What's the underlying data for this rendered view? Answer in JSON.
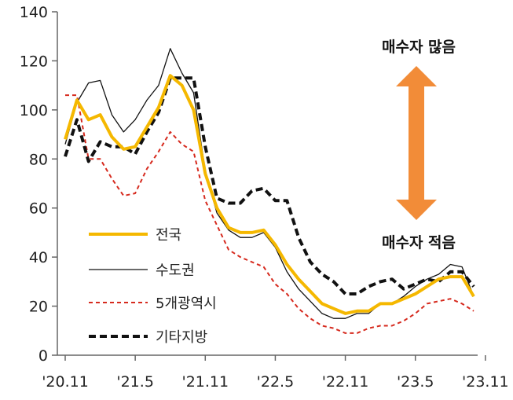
{
  "chart_data": {
    "type": "line",
    "title": "",
    "xlabel": "",
    "ylabel": "",
    "ylim": [
      0,
      140
    ],
    "yticks": [
      0,
      20,
      40,
      60,
      80,
      100,
      120,
      140
    ],
    "x_tick_labels": [
      "'20.11",
      "'21.5",
      "'21.11",
      "'22.5",
      "'22.11",
      "'23.5",
      "'23.11"
    ],
    "grid": false,
    "legend_position": "bottom-left",
    "annotations": {
      "top": "매수자 많음",
      "bottom": "매수자 적음"
    },
    "arrow_color": "#F28C38",
    "series": [
      {
        "name": "전국",
        "color": "#F5B800",
        "style": "solid-thick",
        "values": [
          88,
          104,
          96,
          98,
          89,
          84,
          85,
          93,
          101,
          114,
          110,
          100,
          74,
          60,
          52,
          50,
          50,
          51,
          45,
          37,
          31,
          26,
          21,
          19,
          17,
          18,
          18,
          21,
          21,
          23,
          25,
          28,
          31,
          32,
          32,
          24
        ]
      },
      {
        "name": "수도권",
        "color": "#111111",
        "style": "solid-thin",
        "values": [
          86,
          103,
          111,
          112,
          98,
          91,
          96,
          104,
          110,
          125,
          115,
          107,
          75,
          58,
          51,
          48,
          48,
          50,
          44,
          34,
          27,
          22,
          17,
          15,
          15,
          17,
          17,
          21,
          21,
          24,
          28,
          31,
          33,
          37,
          36,
          24
        ]
      },
      {
        "name": "5개광역시",
        "color": "#D62A1E",
        "style": "dashed-thin",
        "values": [
          106,
          106,
          80,
          80,
          72,
          65,
          66,
          76,
          83,
          91,
          86,
          83,
          63,
          53,
          43,
          40,
          38,
          36,
          29,
          25,
          19,
          15,
          12,
          11,
          9,
          9,
          11,
          12,
          12,
          14,
          17,
          21,
          22,
          23,
          21,
          18
        ]
      },
      {
        "name": "기타지방",
        "color": "#111111",
        "style": "dashed-thick",
        "values": [
          81,
          96,
          79,
          87,
          85,
          85,
          82,
          91,
          99,
          113,
          113,
          113,
          85,
          64,
          62,
          62,
          67,
          68,
          63,
          63,
          48,
          38,
          33,
          30,
          25,
          25,
          28,
          30,
          31,
          27,
          29,
          31,
          30,
          34,
          34,
          28
        ]
      }
    ]
  }
}
